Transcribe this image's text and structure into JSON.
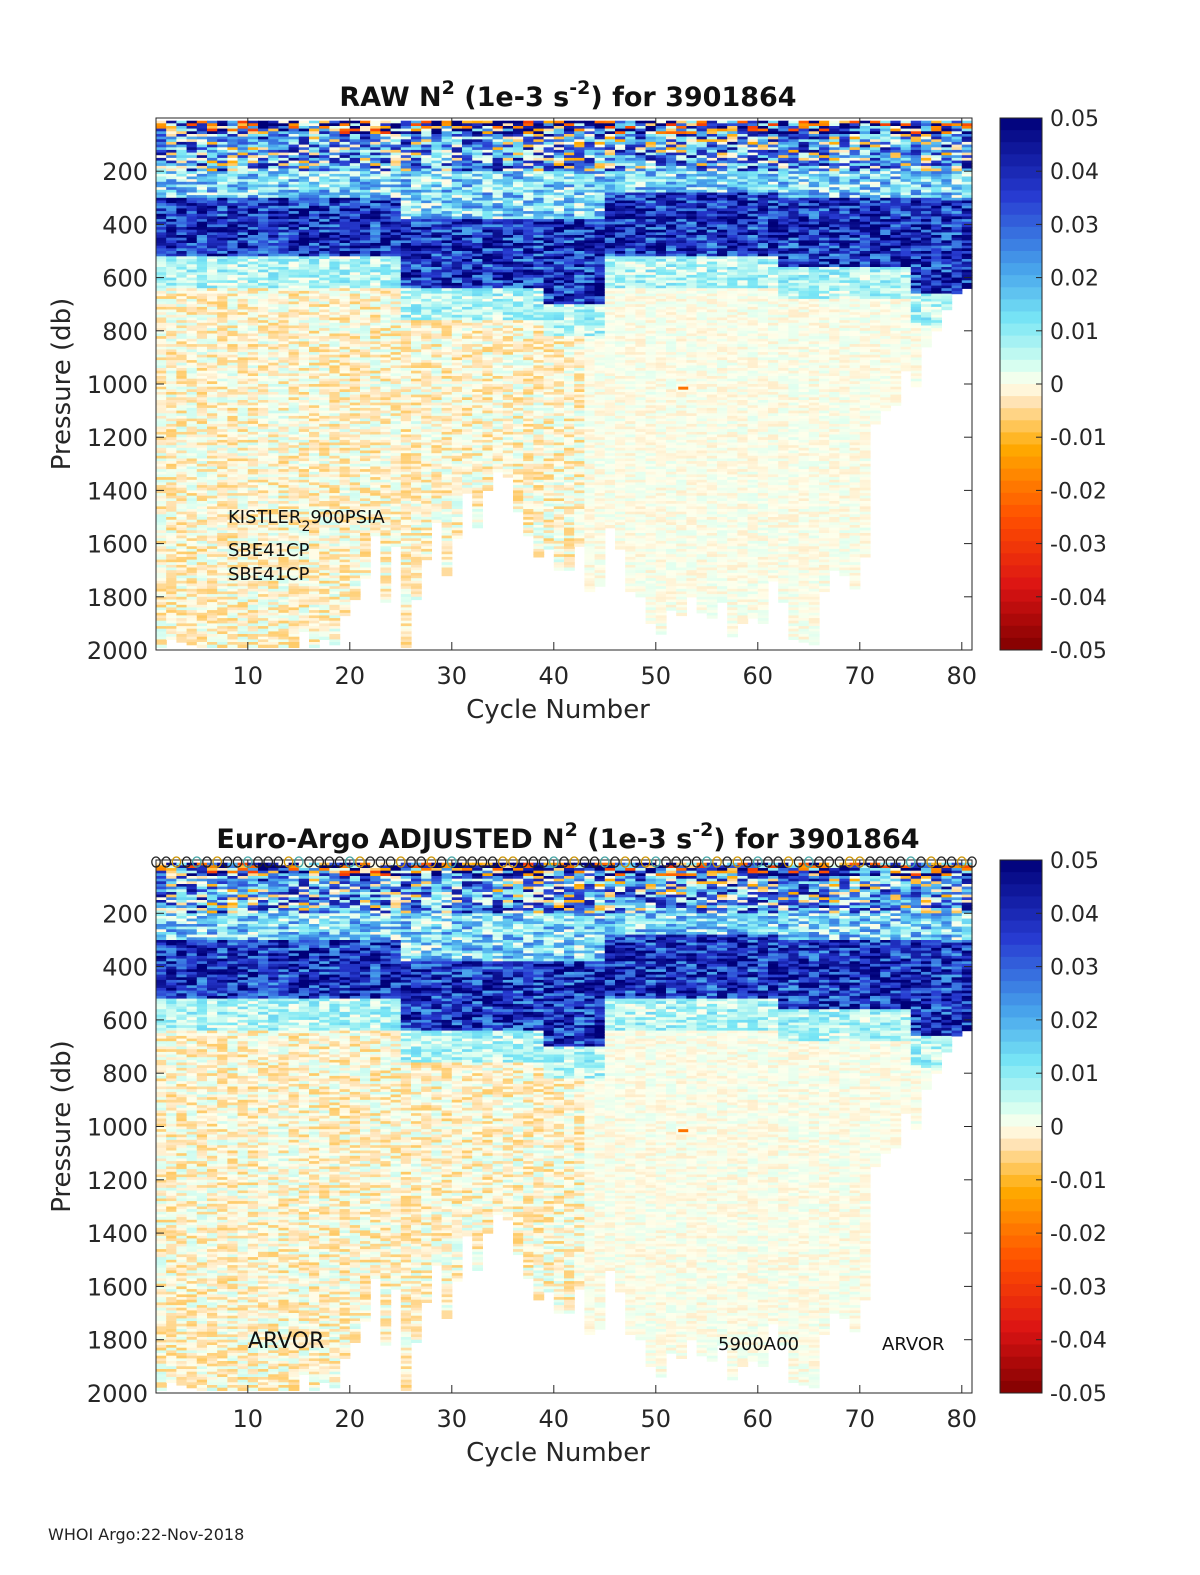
{
  "footer": "WHOI Argo:22-Nov-2018",
  "chart_data": [
    {
      "type": "heatmap",
      "title": "RAW N",
      "title_sup": "2",
      "title_mid": " (1e-3 s",
      "title_sup2": "-2",
      "title_end": ") for 3901864",
      "xlabel": "Cycle Number",
      "ylabel": "Pressure (db)",
      "xlim": [
        1,
        81
      ],
      "ylim": [
        2000,
        0
      ],
      "xticks": [
        10,
        20,
        30,
        40,
        50,
        60,
        70,
        80
      ],
      "yticks": [
        200,
        400,
        600,
        800,
        1000,
        1200,
        1400,
        1600,
        1800,
        2000
      ],
      "colorbar": {
        "range": [
          -0.05,
          0.05
        ],
        "ticks": [
          "0.05",
          "0.04",
          "0.03",
          "0.02",
          "0.01",
          "0",
          "-0.01",
          "-0.02",
          "-0.03",
          "-0.04",
          "-0.05"
        ]
      },
      "max_depth_by_cycle": [
        1990,
        1960,
        1970,
        1975,
        1990,
        1990,
        1990,
        1990,
        1990,
        1985,
        1990,
        1990,
        1990,
        1990,
        1925,
        1985,
        1960,
        1980,
        1870,
        1810,
        1730,
        1570,
        1820,
        1610,
        1990,
        1810,
        1660,
        1520,
        1720,
        1580,
        1410,
        1540,
        1400,
        1330,
        1350,
        1480,
        1570,
        1650,
        1620,
        1700,
        1700,
        1610,
        1780,
        1760,
        1540,
        1620,
        1780,
        1800,
        1900,
        1940,
        1850,
        1870,
        1800,
        1860,
        1880,
        1820,
        1950,
        1900,
        1880,
        1900,
        1740,
        1820,
        1960,
        1970,
        1980,
        1780,
        1700,
        1720,
        1770,
        1650,
        1150,
        1100,
        1080,
        950,
        1010,
        860,
        800,
        720,
        660,
        640
      ],
      "annotations": [
        {
          "text": "KISTLER",
          "sub": "2",
          "rest": "900PSIA"
        },
        {
          "text": "SBE41CP"
        },
        {
          "text": "SBE41CP"
        }
      ],
      "markers": []
    },
    {
      "type": "heatmap",
      "title": "Euro-Argo  ADJUSTED N",
      "title_sup": "2",
      "title_mid": " (1e-3 s",
      "title_sup2": "-2",
      "title_end": ") for 3901864",
      "xlabel": "Cycle Number",
      "ylabel": "Pressure (db)",
      "xlim": [
        1,
        81
      ],
      "ylim": [
        2000,
        0
      ],
      "xticks": [
        10,
        20,
        30,
        40,
        50,
        60,
        70,
        80
      ],
      "yticks": [
        200,
        400,
        600,
        800,
        1000,
        1200,
        1400,
        1600,
        1800,
        2000
      ],
      "colorbar": {
        "range": [
          -0.05,
          0.05
        ],
        "ticks": [
          "0.05",
          "0.04",
          "0.03",
          "0.02",
          "0.01",
          "0",
          "-0.01",
          "-0.02",
          "-0.03",
          "-0.04",
          "-0.05"
        ]
      },
      "max_depth_by_cycle": [
        1990,
        1960,
        1970,
        1975,
        1990,
        1990,
        1990,
        1990,
        1990,
        1985,
        1990,
        1990,
        1990,
        1990,
        1925,
        1985,
        1960,
        1980,
        1870,
        1810,
        1730,
        1570,
        1820,
        1610,
        1990,
        1810,
        1660,
        1520,
        1720,
        1580,
        1410,
        1540,
        1400,
        1330,
        1350,
        1480,
        1570,
        1650,
        1620,
        1700,
        1700,
        1610,
        1780,
        1760,
        1540,
        1620,
        1780,
        1800,
        1900,
        1940,
        1850,
        1870,
        1800,
        1860,
        1880,
        1820,
        1950,
        1900,
        1880,
        1900,
        1740,
        1820,
        1960,
        1970,
        1980,
        1780,
        1700,
        1720,
        1770,
        1650,
        1150,
        1100,
        1080,
        950,
        1010,
        860,
        800,
        720,
        660,
        640
      ],
      "annotations": [
        {
          "text": "ARVOR"
        },
        {
          "text": "5900A00"
        },
        {
          "text": "ARVOR"
        }
      ],
      "markers": {
        "symbol": "o",
        "from_cycle": 1,
        "to_cycle": 81,
        "pressure": 0
      }
    }
  ]
}
